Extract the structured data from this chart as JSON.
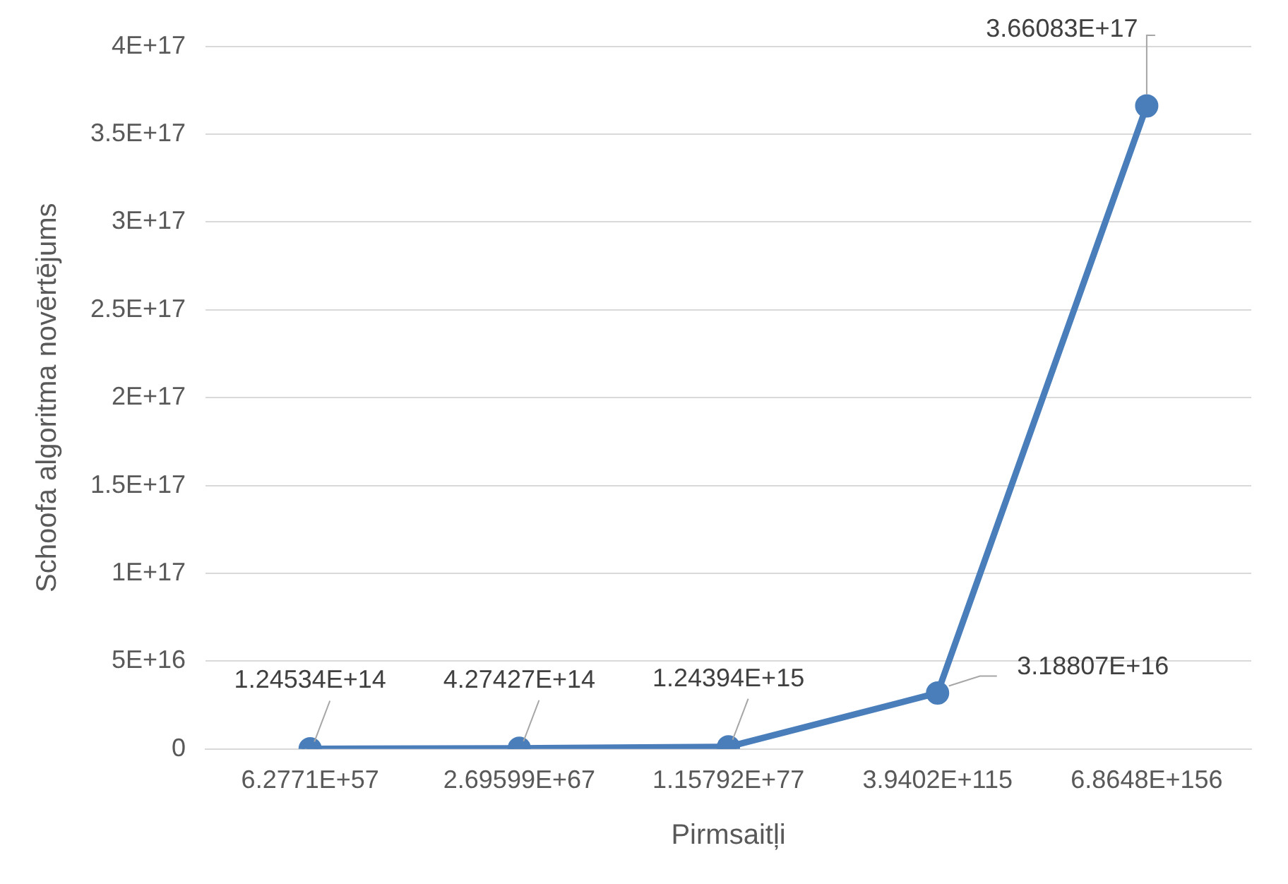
{
  "chart_data": {
    "type": "line",
    "xlabel": "Pirmsaitļi",
    "ylabel": "Schoofa algoritma novērtējums",
    "categories": [
      "6.2771E+57",
      "2.69599E+67",
      "1.15792E+77",
      "3.9402E+115",
      "6.8648E+156"
    ],
    "series": [
      {
        "color": "#4a7ebb",
        "values": [
          124534000000000.0,
          427427000000000.0,
          1243940000000000.0,
          3.18807e+16,
          3.66083e+17
        ],
        "value_labels": [
          "1.24534E+14",
          "4.27427E+14",
          "1.24394E+15",
          "3.18807E+16",
          "3.66083E+17"
        ]
      }
    ],
    "ylim": [
      0,
      4e+17
    ],
    "yticks": [
      {
        "value": 0,
        "label": "0"
      },
      {
        "value": 5e+16,
        "label": "5E+16"
      },
      {
        "value": 1e+17,
        "label": "1E+17"
      },
      {
        "value": 1.5e+17,
        "label": "1.5E+17"
      },
      {
        "value": 2e+17,
        "label": "2E+17"
      },
      {
        "value": 2.5e+17,
        "label": "2.5E+17"
      },
      {
        "value": 3e+17,
        "label": "3E+17"
      },
      {
        "value": 3.5e+17,
        "label": "3.5E+17"
      },
      {
        "value": 4e+17,
        "label": "4E+17"
      }
    ],
    "grid": "y",
    "legend": false,
    "marker": "circle",
    "line_style": "solid"
  }
}
